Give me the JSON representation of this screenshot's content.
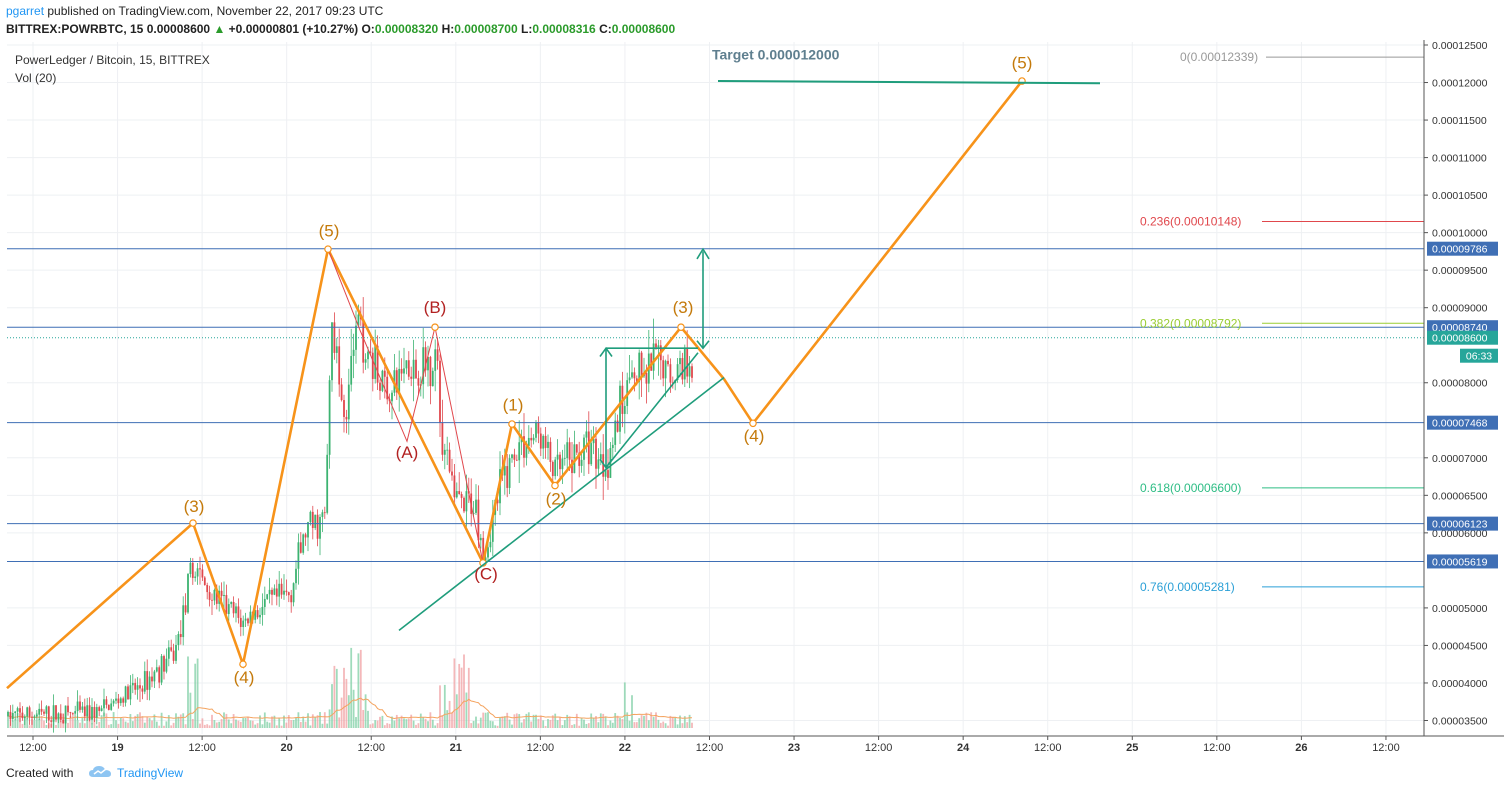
{
  "header": {
    "publisher": "pgarret",
    "published_text": "published on TradingView.com, November 22, 2017 09:23 UTC",
    "symbol_tf": "BITTREX:POWRBTC, 15",
    "last_price": "0.00008600",
    "change": "+0.00000801 (+10.27%)",
    "o_label": "O:",
    "o_value": "0.00008320",
    "h_label": "H:",
    "h_value": "0.00008700",
    "l_label": "L:",
    "l_value": "0.00008316",
    "c_label": "C:",
    "c_value": "0.00008600"
  },
  "legend": {
    "title": "PowerLedger / Bitcoin, 15, BITTREX",
    "vol": "Vol (20)"
  },
  "footer": {
    "created_with": "Created with",
    "brand": "TradingView"
  },
  "colors": {
    "candle_up": "#3cb371",
    "candle_down": "#e0474c",
    "wave": "#f7931a",
    "corrective": "#e0474c",
    "trend": "#1f9d7c",
    "hline": "#3f6fb5",
    "price_tag": "#3f6fb5",
    "last_tag": "#26a69a"
  },
  "chart_data": {
    "type": "candlestick",
    "title": "PowerLedger / Bitcoin, 15, BITTREX",
    "y_axis": {
      "ticks": [
        "0.00012500",
        "0.00012000",
        "0.00011500",
        "0.00011000",
        "0.00010500",
        "0.00010000",
        "0.00009500",
        "0.00009000",
        "0.00008000",
        "0.00007000",
        "0.00006500",
        "0.00006000",
        "0.00005000",
        "0.00004500",
        "0.00004000",
        "0.00003500"
      ],
      "range": [
        3.32e-05,
        0.0001254
      ]
    },
    "x_axis": {
      "ticks": [
        "12:00",
        "19",
        "12:00",
        "20",
        "12:00",
        "21",
        "12:00",
        "22",
        "12:00",
        "23",
        "12:00",
        "24",
        "12:00",
        "25",
        "12:00",
        "26",
        "12:00"
      ],
      "bold": [
        "19",
        "20",
        "21",
        "22",
        "23",
        "24",
        "25",
        "26"
      ]
    },
    "price_tags": [
      {
        "value": "0.00009786",
        "price": 9.786e-05,
        "style": "line"
      },
      {
        "value": "0.00008740",
        "price": 8.74e-05,
        "style": "line"
      },
      {
        "value": "0.00008600",
        "price": 8.6e-05,
        "style": "dotted"
      },
      {
        "value": "0.00007468",
        "price": 7.468e-05,
        "style": "line"
      },
      {
        "value": "0.00006123",
        "price": 6.123e-05,
        "style": "line"
      },
      {
        "value": "0.00005619",
        "price": 5.619e-05,
        "style": "line"
      }
    ],
    "countdown": "06:33",
    "fib_levels": [
      {
        "label": "0(0.00012339)",
        "price": 0.00012339,
        "color": "#999999"
      },
      {
        "label": "0.236(0.00010148)",
        "price": 0.00010148,
        "color": "#e0474c"
      },
      {
        "label": "0.382(0.00008792)",
        "price": 8.792e-05,
        "color": "#9acd32"
      },
      {
        "label": "0.618(0.00006600)",
        "price": 6.6e-05,
        "color": "#2ebd85"
      },
      {
        "label": "0.76(0.00005281)",
        "price": 5.281e-05,
        "color": "#2a9fd6"
      }
    ],
    "target_label": "Target 0.000012000",
    "elliott_labels": {
      "w3a": "(3)",
      "w4a": "(4)",
      "w5a": "(5)",
      "A": "(A)",
      "B": "(B)",
      "C": "(C)",
      "w1": "(1)",
      "w2": "(2)",
      "w3b": "(3)",
      "w4b": "(4)",
      "w5b": "(5)"
    }
  }
}
